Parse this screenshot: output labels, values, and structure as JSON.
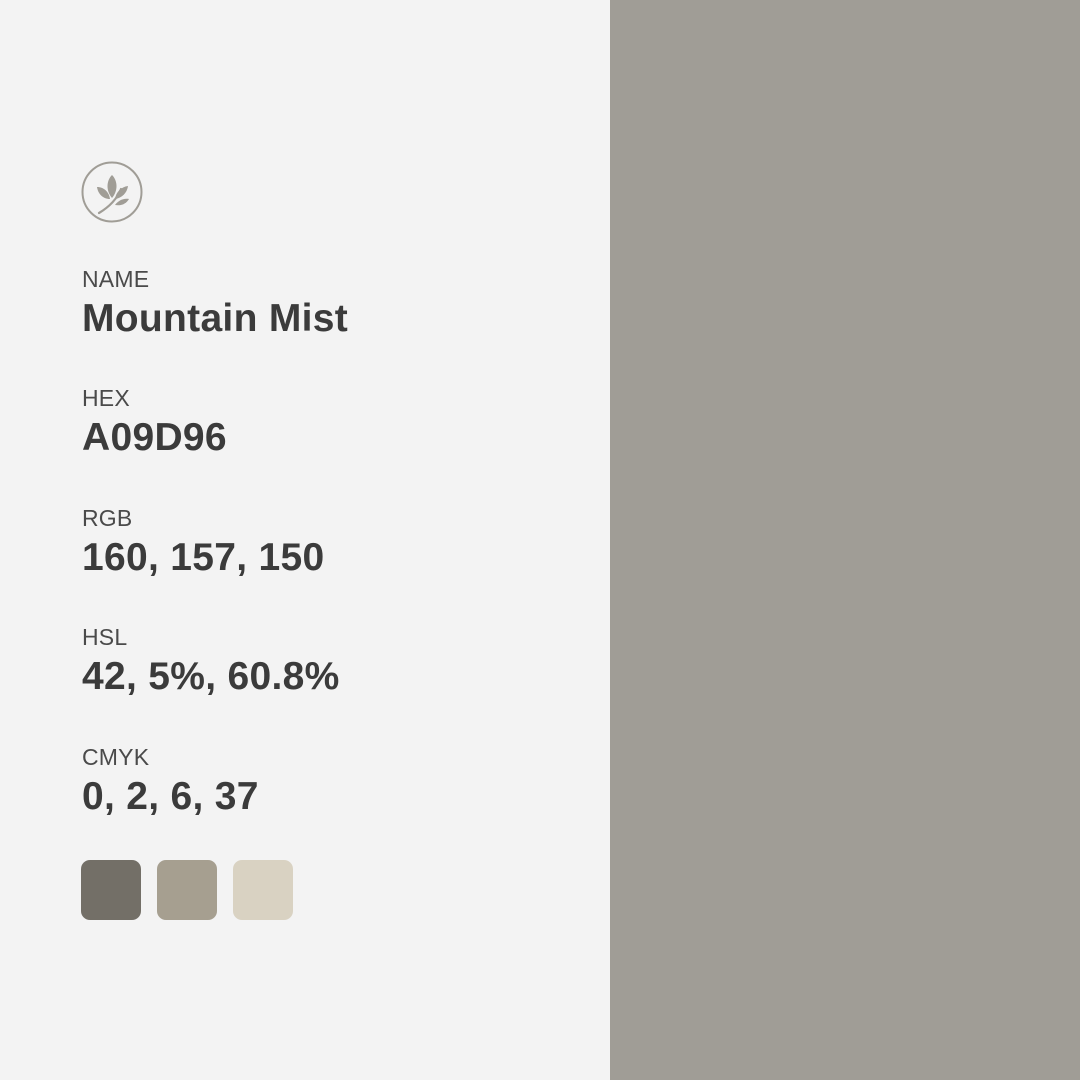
{
  "colors": {
    "background": "#f3f3f3",
    "swatch": "#a09d96",
    "text": "#3d3d3d",
    "logo": "#a09d96"
  },
  "logo": {
    "icon": "leaf-branch-icon"
  },
  "fields": {
    "name": {
      "label": "NAME",
      "value": "Mountain Mist"
    },
    "hex": {
      "label": "HEX",
      "value": "A09D96"
    },
    "rgb": {
      "label": "RGB",
      "value": "160, 157, 150"
    },
    "hsl": {
      "label": "HSL",
      "value": "42, 5%, 60.8%"
    },
    "cmyk": {
      "label": "CMYK",
      "value": "0, 2, 6, 37"
    }
  },
  "palette": [
    "#736f67",
    "#a69f90",
    "#d9d2c2"
  ]
}
